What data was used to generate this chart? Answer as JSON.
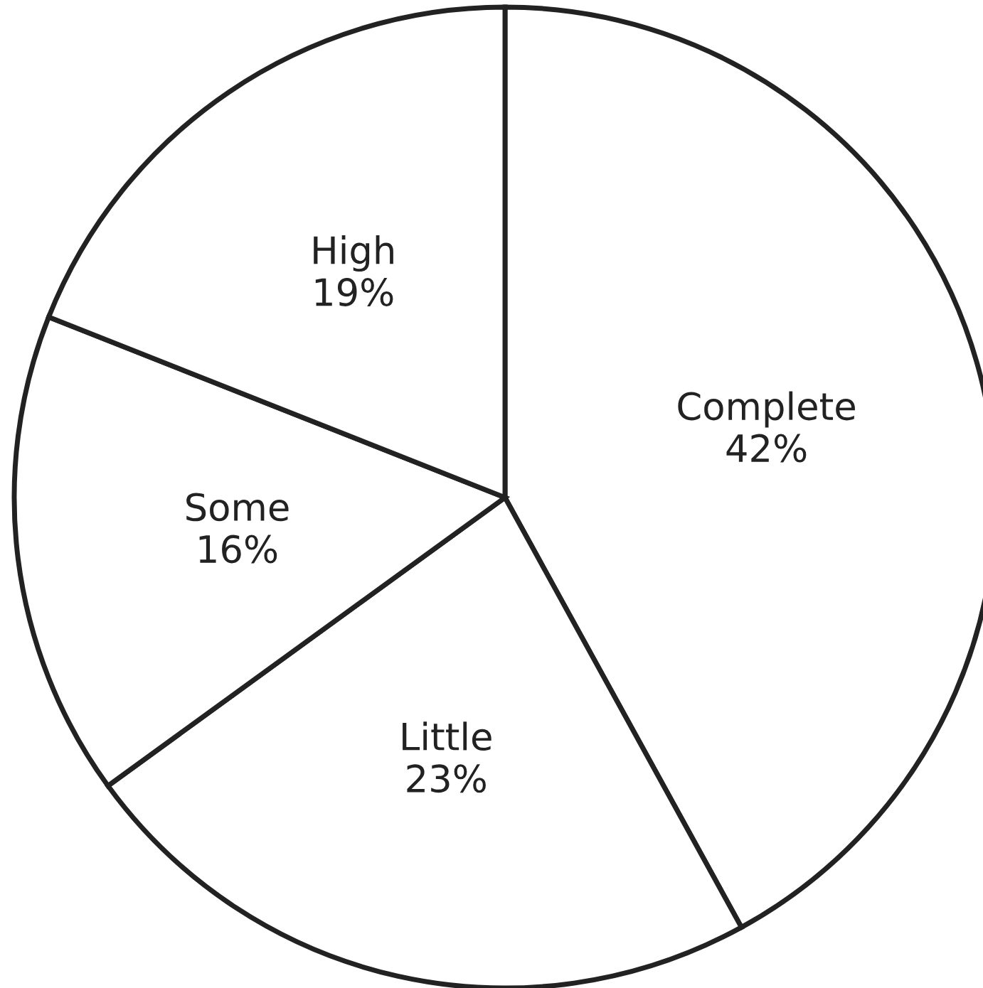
{
  "chart_data": {
    "type": "pie",
    "categories": [
      "Complete",
      "Little",
      "Some",
      "High"
    ],
    "values": [
      42,
      23,
      16,
      19
    ],
    "value_labels": [
      "42%",
      "23%",
      "16%",
      "19%"
    ],
    "colors": [
      "#ffffff",
      "#ffffff",
      "#ffffff",
      "#ffffff"
    ]
  }
}
